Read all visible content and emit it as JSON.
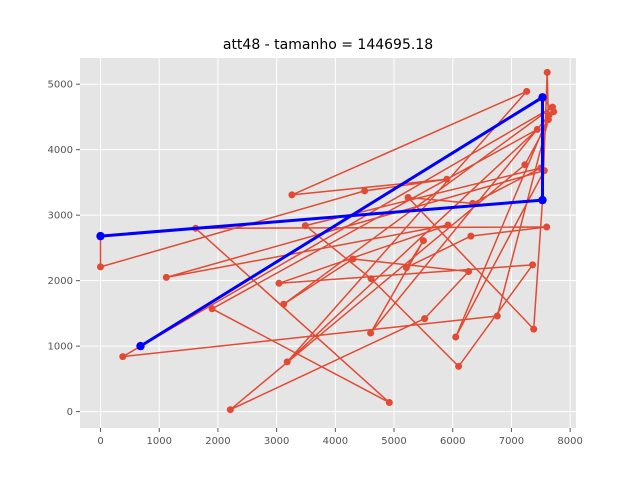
{
  "chart_data": {
    "type": "line",
    "title": "att48 - tamanho = 144695.18",
    "xlabel": "",
    "ylabel": "",
    "xlim": [
      -350,
      8100
    ],
    "ylim": [
      -250,
      5400
    ],
    "xticks": [
      0,
      1000,
      2000,
      3000,
      4000,
      5000,
      6000,
      7000,
      8000
    ],
    "yticks": [
      0,
      1000,
      2000,
      3000,
      4000,
      5000
    ],
    "grid": true,
    "background": "#E5E5E5",
    "series": [
      {
        "color": "#E24A33",
        "style": "line-markers",
        "points": [
          [
            0,
            2680
          ],
          [
            0,
            2210
          ],
          [
            4500,
            3370
          ],
          [
            5900,
            3550
          ],
          [
            3260,
            3310
          ],
          [
            7260,
            4890
          ],
          [
            3180,
            760
          ],
          [
            7440,
            4310
          ],
          [
            1900,
            1570
          ],
          [
            4920,
            140
          ],
          [
            1620,
            2800
          ],
          [
            7600,
            2820
          ],
          [
            6310,
            2680
          ],
          [
            5210,
            2200
          ],
          [
            5500,
            2610
          ],
          [
            4600,
            1200
          ],
          [
            7640,
            4530
          ],
          [
            6050,
            1140
          ],
          [
            7560,
            3680
          ],
          [
            1120,
            2050
          ],
          [
            5920,
            2850
          ],
          [
            3040,
            1960
          ],
          [
            7360,
            2240
          ],
          [
            6100,
            690
          ],
          [
            4610,
            2030
          ],
          [
            3490,
            2840
          ],
          [
            7500,
            3720
          ],
          [
            6340,
            3180
          ],
          [
            5240,
            3270
          ],
          [
            7380,
            1260
          ],
          [
            7530,
            3230
          ],
          [
            7610,
            5180
          ],
          [
            7630,
            4460
          ],
          [
            6760,
            1460
          ],
          [
            380,
            840
          ],
          [
            7700,
            4650
          ],
          [
            3120,
            1640
          ],
          [
            4300,
            2330
          ],
          [
            6270,
            2140
          ],
          [
            5520,
            1420
          ],
          [
            2210,
            30
          ],
          [
            7230,
            3770
          ],
          [
            7720,
            4580
          ],
          [
            7530,
            4800
          ],
          [
            680,
            1000
          ]
        ]
      },
      {
        "color": "#0000FF",
        "style": "thick-line-markers",
        "points": [
          [
            680,
            1000
          ],
          [
            7530,
            4800
          ],
          [
            7530,
            3230
          ],
          [
            0,
            2680
          ]
        ]
      }
    ]
  }
}
